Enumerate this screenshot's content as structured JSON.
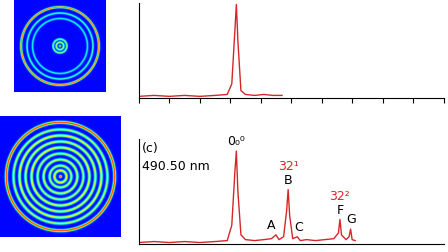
{
  "chart_data": [
    {
      "type": "line",
      "image": {
        "rings": [
          0.0,
          0.08,
          0.15,
          0.6,
          0.72,
          0.85
        ],
        "intensities": [
          1.0,
          0.5,
          0.45,
          0.3,
          0.35,
          0.8
        ]
      },
      "x": [
        0,
        0.5,
        1.0,
        1.5,
        2.0,
        2.5,
        2.9,
        3.05,
        3.15,
        3.2,
        3.25,
        3.35,
        3.5,
        3.8,
        4.1,
        4.4,
        4.7
      ],
      "values": [
        0.02,
        0.03,
        0.02,
        0.03,
        0.02,
        0.03,
        0.04,
        0.15,
        0.7,
        0.98,
        0.6,
        0.08,
        0.04,
        0.03,
        0.04,
        0.03,
        0.03
      ],
      "color": "#d62728",
      "xlim": [
        0,
        10
      ],
      "xticks": [
        0,
        1,
        2,
        3,
        4,
        5,
        6,
        7,
        8,
        9,
        10
      ],
      "ylim": [
        0,
        1.0
      ],
      "yticks": [],
      "tick_labels": false
    },
    {
      "type": "line",
      "title": "(c)",
      "subtitle": "490.50 nm",
      "image": {
        "rings": [
          0.0,
          0.1,
          0.18,
          0.28,
          0.38,
          0.48,
          0.58,
          0.68,
          0.78,
          0.9
        ],
        "intensities": [
          0.9,
          0.6,
          0.5,
          0.55,
          0.5,
          0.6,
          0.55,
          0.6,
          0.5,
          0.85
        ]
      },
      "x": [
        0,
        0.5,
        1.0,
        1.5,
        2.0,
        2.5,
        2.9,
        3.05,
        3.15,
        3.2,
        3.25,
        3.35,
        3.5,
        3.8,
        4.1,
        4.35,
        4.5,
        4.6,
        4.75,
        4.85,
        4.9,
        4.95,
        5.05,
        5.2,
        5.3,
        5.5,
        5.8,
        6.1,
        6.4,
        6.55,
        6.6,
        6.65,
        6.8,
        6.9,
        6.95,
        7.0,
        7.1
      ],
      "values": [
        0.02,
        0.03,
        0.02,
        0.03,
        0.02,
        0.03,
        0.04,
        0.2,
        0.75,
        0.97,
        0.55,
        0.1,
        0.05,
        0.04,
        0.05,
        0.06,
        0.1,
        0.05,
        0.08,
        0.35,
        0.57,
        0.3,
        0.06,
        0.08,
        0.04,
        0.05,
        0.04,
        0.05,
        0.06,
        0.12,
        0.26,
        0.1,
        0.05,
        0.08,
        0.16,
        0.05,
        0.04
      ],
      "color": "#d62728",
      "xlim": [
        0,
        10
      ],
      "xticks": [],
      "ylim": [
        0,
        1.1
      ],
      "yticks": [],
      "tick_labels": false,
      "annotations": [
        {
          "text": "0₀⁰",
          "x": 3.2,
          "y": 1.0,
          "color": "black"
        },
        {
          "text": "A",
          "x": 4.35,
          "y": 0.13,
          "color": "black"
        },
        {
          "text": "B",
          "x": 4.9,
          "y": 0.6,
          "color": "black"
        },
        {
          "text": "32¹",
          "x": 4.9,
          "y": 0.74,
          "color": "#d62728"
        },
        {
          "text": "C",
          "x": 5.25,
          "y": 0.11,
          "color": "black"
        },
        {
          "text": "F",
          "x": 6.6,
          "y": 0.29,
          "color": "black"
        },
        {
          "text": "32²",
          "x": 6.6,
          "y": 0.43,
          "color": "#d62728"
        },
        {
          "text": "G",
          "x": 6.97,
          "y": 0.19,
          "color": "black"
        }
      ]
    }
  ]
}
